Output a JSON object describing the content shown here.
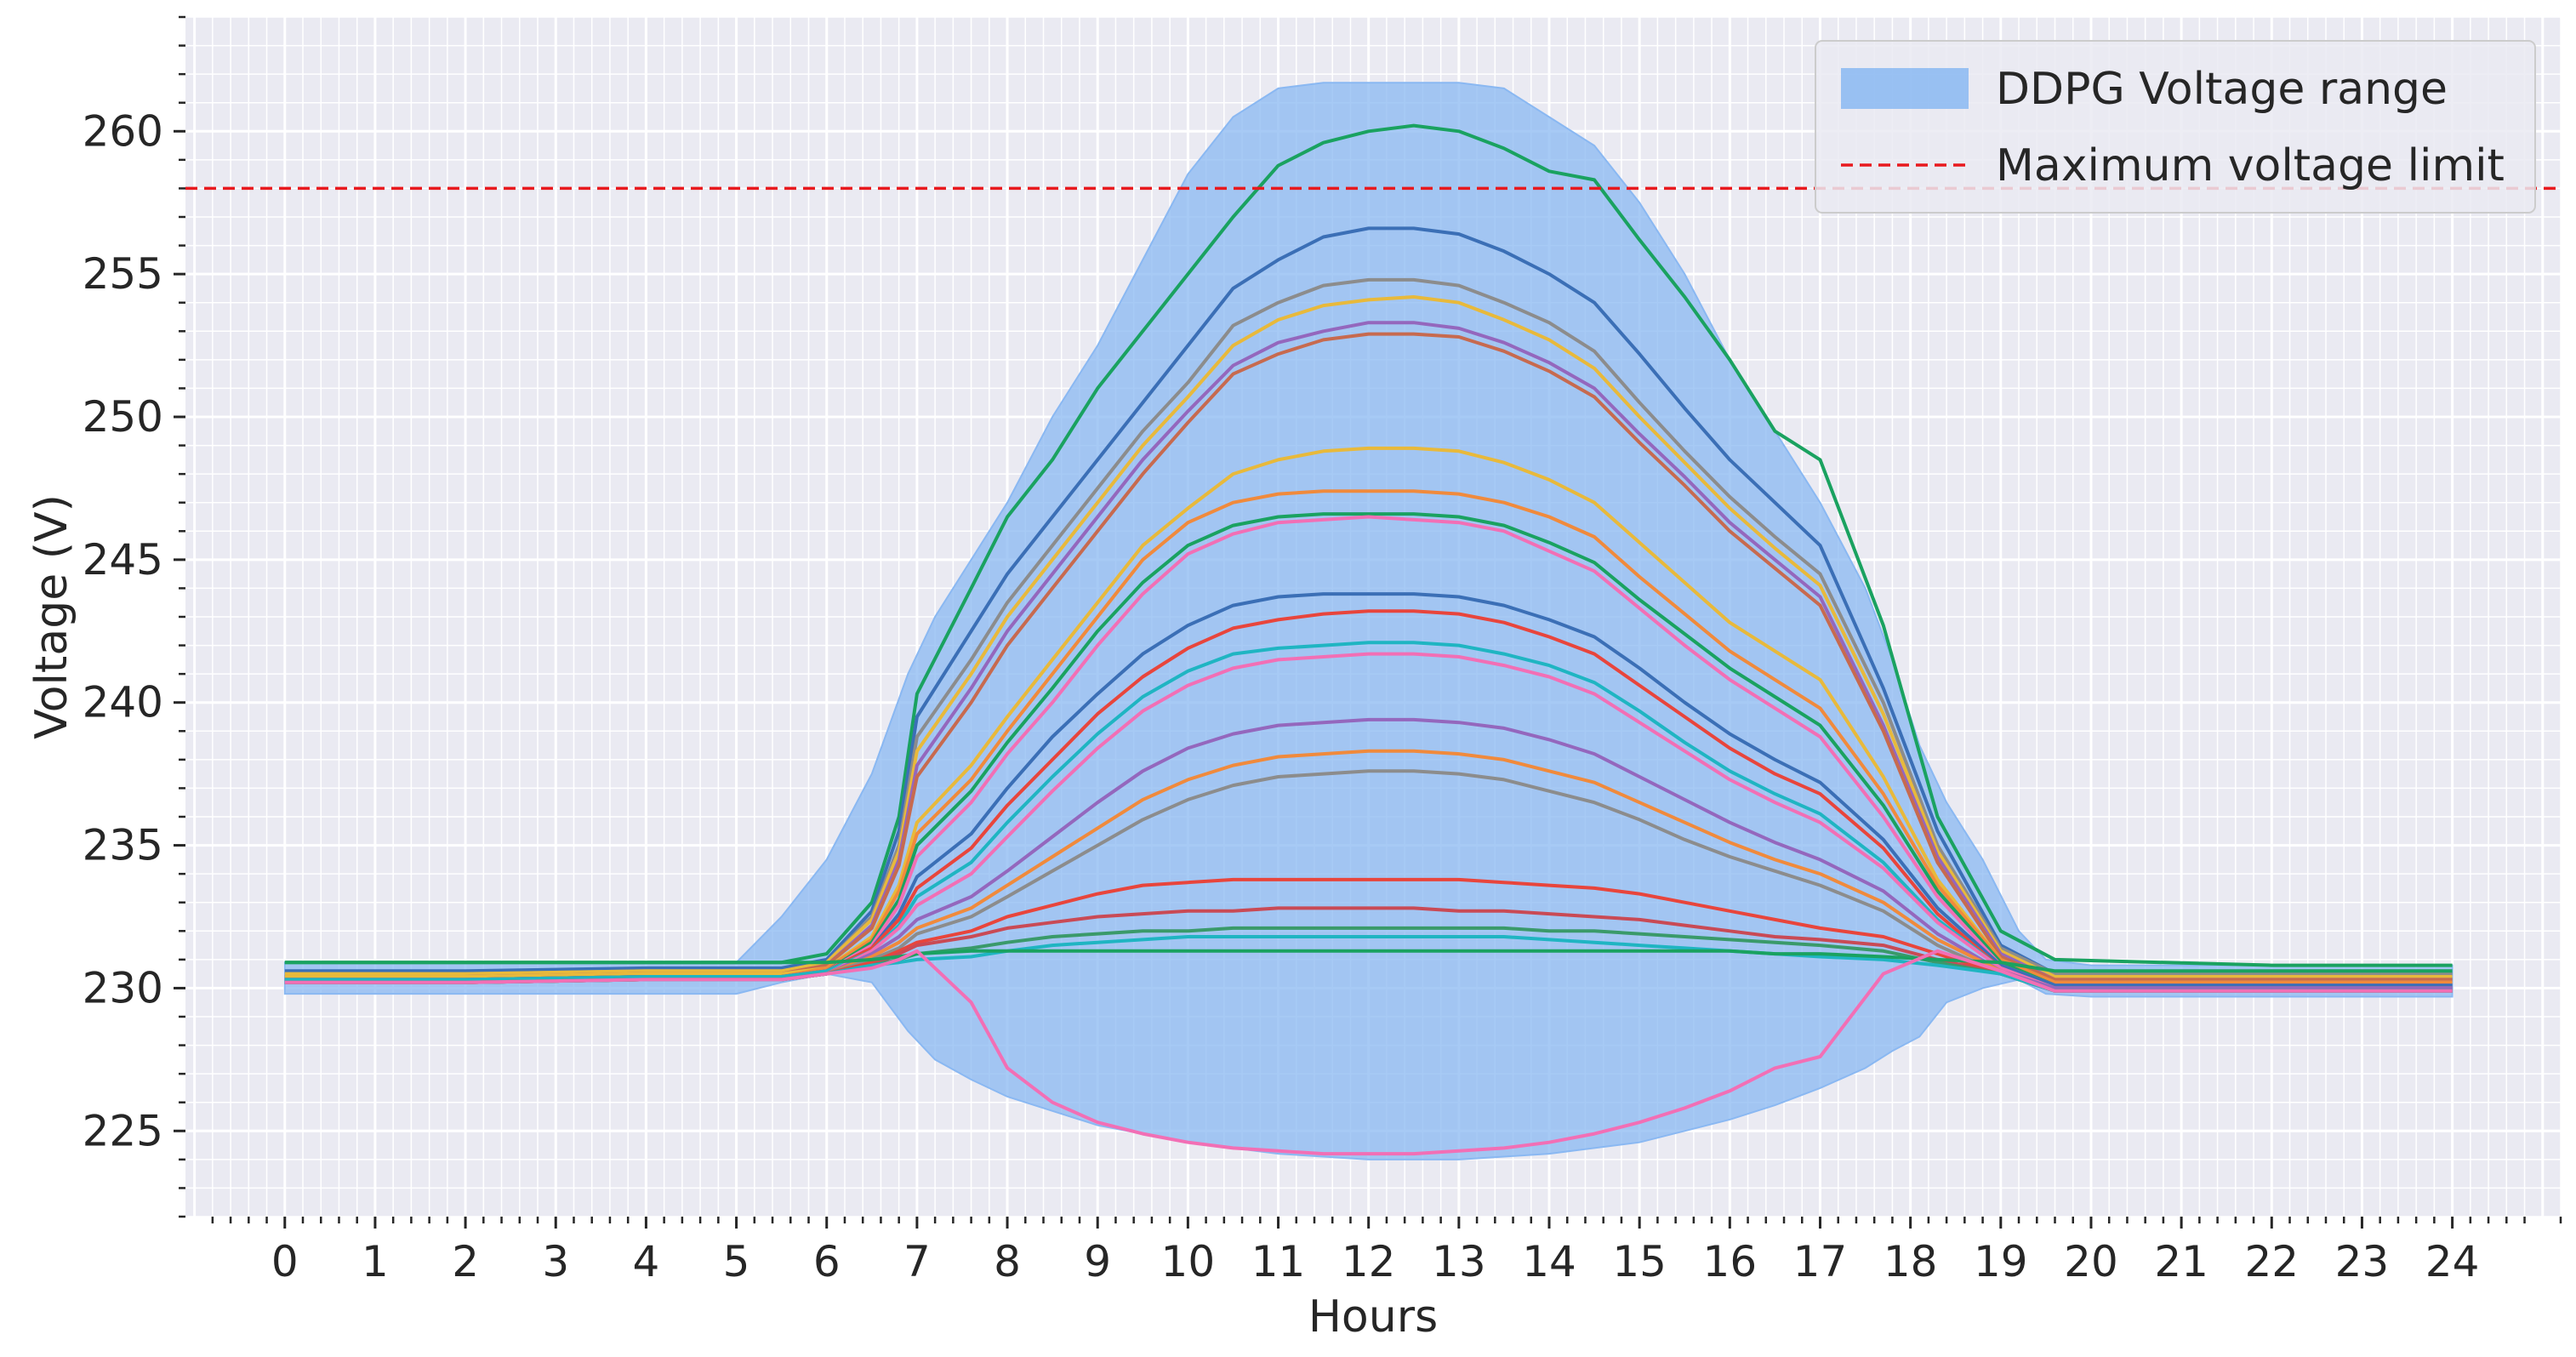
{
  "chart_data": {
    "type": "area",
    "title": "",
    "xlabel": "Hours",
    "ylabel": "Voltage (V)",
    "xlim": [
      -1.1,
      25.2
    ],
    "ylim": [
      222,
      264
    ],
    "x_ticks": [
      "0",
      "1",
      "2",
      "3",
      "4",
      "5",
      "6",
      "7",
      "8",
      "9",
      "10",
      "11",
      "12",
      "13",
      "14",
      "15",
      "16",
      "17",
      "18",
      "19",
      "20",
      "21",
      "22",
      "23",
      "24"
    ],
    "y_ticks": [
      "225",
      "230",
      "235",
      "240",
      "245",
      "250",
      "255",
      "260"
    ],
    "grid": true,
    "legend_position": "top-right",
    "legend": [
      {
        "label": "DDPG Voltage range",
        "kind": "band",
        "color": "#8ab8f2"
      },
      {
        "label": "Maximum voltage limit",
        "kind": "dashed-line",
        "color": "#e8191e"
      }
    ],
    "reference_line": {
      "name": "Maximum voltage limit",
      "y": 258,
      "color": "#e8191e"
    },
    "band": {
      "name": "DDPG Voltage range",
      "x": [
        0,
        0.5,
        1,
        2,
        3,
        4,
        5,
        5.5,
        6,
        6.5,
        6.9,
        7.2,
        7.6,
        8,
        8.5,
        9,
        9.5,
        10,
        10.5,
        11,
        11.5,
        12,
        12.5,
        13,
        13.5,
        14,
        14.5,
        15,
        15.5,
        16,
        16.5,
        17,
        17.5,
        17.8,
        18.1,
        18.4,
        18.8,
        19.2,
        19.5,
        20,
        21,
        22,
        23,
        24
      ],
      "upper": [
        230.9,
        230.9,
        230.9,
        230.9,
        230.9,
        230.9,
        230.9,
        232.5,
        234.5,
        237.5,
        241,
        243,
        245,
        247,
        250,
        252.5,
        255.5,
        258.5,
        260.5,
        261.5,
        261.7,
        261.7,
        261.7,
        261.7,
        261.5,
        260.5,
        259.5,
        257.5,
        255,
        252,
        249.5,
        247,
        244,
        241.5,
        238.5,
        236.5,
        234.5,
        232,
        231,
        230.8,
        230.8,
        230.8,
        230.8,
        230.8
      ],
      "lower": [
        229.8,
        229.8,
        229.8,
        229.8,
        229.8,
        229.8,
        229.8,
        230.2,
        230.5,
        230.2,
        228.5,
        227.5,
        226.8,
        226.2,
        225.7,
        225.2,
        224.9,
        224.6,
        224.4,
        224.2,
        224.1,
        224.0,
        224.0,
        224.0,
        224.1,
        224.2,
        224.4,
        224.6,
        225.0,
        225.4,
        225.9,
        226.5,
        227.2,
        227.8,
        228.3,
        229.5,
        230.0,
        230.3,
        229.8,
        229.7,
        229.7,
        229.7,
        229.7,
        229.7
      ]
    },
    "series": [
      {
        "color": "#1aa260",
        "values": [
          230.9,
          230.9,
          230.9,
          230.9,
          231.2,
          233,
          236,
          240.3,
          244,
          246.5,
          248.5,
          251,
          253,
          255,
          257,
          258.8,
          259.6,
          260.0,
          260.2,
          260.0,
          259.4,
          258.6,
          258.3,
          256.2,
          254.2,
          252.0,
          249.5,
          248.5,
          242.7,
          236.0,
          232.0,
          231.0,
          230.8,
          230.8
        ]
      },
      {
        "color": "#3b6fb6",
        "values": [
          230.6,
          230.6,
          230.7,
          230.7,
          231,
          232.7,
          235.5,
          239.5,
          242.5,
          244.5,
          246.5,
          248.5,
          250.5,
          252.5,
          254.5,
          255.5,
          256.3,
          256.6,
          256.6,
          256.4,
          255.8,
          255.0,
          254.0,
          252.2,
          250.3,
          248.5,
          247.0,
          245.5,
          240.5,
          235.5,
          231.5,
          230.5,
          230.5,
          230.5
        ]
      },
      {
        "color": "#8c8c8c",
        "values": [
          230.5,
          230.5,
          230.6,
          230.6,
          230.9,
          232.5,
          235,
          238.8,
          241.5,
          243.5,
          245.5,
          247.5,
          249.5,
          251.2,
          253.2,
          254.0,
          254.6,
          254.8,
          254.8,
          254.6,
          254.0,
          253.3,
          252.3,
          250.5,
          248.8,
          247.2,
          245.8,
          244.5,
          240.0,
          235.0,
          231.4,
          230.5,
          230.5,
          230.5
        ]
      },
      {
        "color": "#e8b93b",
        "values": [
          230.5,
          230.5,
          230.6,
          230.6,
          230.9,
          232.4,
          234.8,
          238.3,
          241,
          243,
          245,
          247,
          249,
          250.7,
          252.5,
          253.4,
          253.9,
          254.1,
          254.2,
          254.0,
          253.4,
          252.7,
          251.7,
          250.0,
          248.4,
          246.8,
          245.4,
          244.1,
          239.6,
          234.8,
          231.3,
          230.4,
          230.4,
          230.4
        ]
      },
      {
        "color": "#9467bd",
        "values": [
          230.4,
          230.4,
          230.5,
          230.5,
          230.8,
          232.2,
          234.5,
          237.8,
          240.5,
          242.5,
          244.5,
          246.5,
          248.5,
          250.2,
          251.8,
          252.6,
          253.0,
          253.3,
          253.3,
          253.1,
          252.6,
          251.9,
          251.0,
          249.4,
          247.9,
          246.3,
          245.0,
          243.7,
          239.2,
          234.6,
          231.2,
          230.3,
          230.3,
          230.3
        ]
      },
      {
        "color": "#c76a4f",
        "values": [
          230.4,
          230.4,
          230.5,
          230.5,
          230.8,
          232.1,
          234.3,
          237.4,
          240.0,
          242.0,
          244.0,
          246.0,
          248.0,
          249.8,
          251.5,
          252.2,
          252.7,
          252.9,
          252.9,
          252.8,
          252.3,
          251.6,
          250.7,
          249.1,
          247.6,
          246.0,
          244.7,
          243.4,
          239.0,
          234.4,
          231.1,
          230.3,
          230.3,
          230.3
        ]
      },
      {
        "color": "#e8b93b",
        "values": [
          230.4,
          230.4,
          230.5,
          230.5,
          230.7,
          231.8,
          233.6,
          235.8,
          237.8,
          239.5,
          241.5,
          243.5,
          245.5,
          246.8,
          248.0,
          248.5,
          248.8,
          248.9,
          248.9,
          248.8,
          248.4,
          247.8,
          247.0,
          245.6,
          244.2,
          242.8,
          241.8,
          240.8,
          237.4,
          233.8,
          231.0,
          230.2,
          230.2,
          230.2
        ]
      },
      {
        "color": "#f08a3c",
        "values": [
          230.3,
          230.3,
          230.4,
          230.4,
          230.7,
          231.7,
          233.4,
          235.4,
          237.3,
          239.0,
          241.0,
          243.0,
          245.0,
          246.3,
          247.0,
          247.3,
          247.4,
          247.4,
          247.4,
          247.3,
          247.0,
          246.5,
          245.8,
          244.4,
          243.1,
          241.8,
          240.8,
          239.8,
          236.8,
          233.6,
          231.0,
          230.2,
          230.2,
          230.2
        ]
      },
      {
        "color": "#1aa260",
        "values": [
          230.3,
          230.3,
          230.4,
          230.4,
          230.6,
          231.6,
          233.1,
          235.0,
          236.9,
          238.6,
          240.5,
          242.5,
          244.2,
          245.5,
          246.2,
          246.5,
          246.6,
          246.6,
          246.6,
          246.5,
          246.2,
          245.6,
          244.9,
          243.6,
          242.4,
          241.2,
          240.2,
          239.2,
          236.4,
          233.4,
          230.9,
          230.1,
          230.1,
          230.1
        ]
      },
      {
        "color": "#f26fb5",
        "values": [
          230.3,
          230.3,
          230.4,
          230.4,
          230.6,
          231.5,
          232.9,
          234.6,
          236.5,
          238.2,
          240.0,
          242.0,
          243.8,
          245.2,
          245.9,
          246.3,
          246.4,
          246.5,
          246.4,
          246.3,
          246.0,
          245.3,
          244.6,
          243.3,
          242.0,
          240.8,
          239.8,
          238.8,
          236.0,
          233.2,
          230.8,
          230.1,
          230.1,
          230.1
        ]
      },
      {
        "color": "#3b6fb6",
        "values": [
          230.3,
          230.3,
          230.4,
          230.4,
          230.6,
          231.4,
          232.6,
          233.9,
          235.4,
          237.0,
          238.8,
          240.3,
          241.7,
          242.7,
          243.4,
          243.7,
          243.8,
          243.8,
          243.8,
          243.7,
          243.4,
          242.9,
          242.3,
          241.2,
          240.0,
          238.9,
          238.0,
          237.2,
          235.2,
          232.8,
          230.8,
          230.1,
          230.1,
          230.1
        ]
      },
      {
        "color": "#e8453c",
        "values": [
          230.3,
          230.3,
          230.4,
          230.4,
          230.6,
          231.4,
          232.4,
          233.5,
          234.9,
          236.4,
          238.0,
          239.6,
          240.9,
          241.9,
          242.6,
          242.9,
          243.1,
          243.2,
          243.2,
          243.1,
          242.8,
          242.3,
          241.7,
          240.6,
          239.5,
          238.4,
          237.5,
          236.8,
          234.9,
          232.6,
          230.7,
          230.0,
          230.0,
          230.0
        ]
      },
      {
        "color": "#1fb5c2",
        "values": [
          230.3,
          230.3,
          230.4,
          230.4,
          230.6,
          231.3,
          232.2,
          233.2,
          234.4,
          235.8,
          237.4,
          238.9,
          240.2,
          241.1,
          241.7,
          241.9,
          242.0,
          242.1,
          242.1,
          242.0,
          241.7,
          241.3,
          240.7,
          239.7,
          238.6,
          237.6,
          236.8,
          236.1,
          234.4,
          232.4,
          230.7,
          230.0,
          230.0,
          230.0
        ]
      },
      {
        "color": "#f26fb5",
        "values": [
          230.2,
          230.2,
          230.3,
          230.3,
          230.5,
          231.3,
          232.1,
          232.9,
          234.0,
          235.3,
          236.9,
          238.4,
          239.7,
          240.6,
          241.2,
          241.5,
          241.6,
          241.7,
          241.7,
          241.6,
          241.3,
          240.9,
          240.3,
          239.3,
          238.3,
          237.3,
          236.5,
          235.8,
          234.2,
          232.3,
          230.7,
          230.0,
          230.0,
          230.0
        ]
      },
      {
        "color": "#9467bd",
        "values": [
          230.2,
          230.2,
          230.3,
          230.3,
          230.5,
          231.2,
          231.8,
          232.4,
          233.2,
          234.1,
          235.3,
          236.5,
          237.6,
          238.4,
          238.9,
          239.2,
          239.3,
          239.4,
          239.4,
          239.3,
          239.1,
          238.7,
          238.2,
          237.4,
          236.6,
          235.8,
          235.1,
          234.5,
          233.4,
          231.9,
          230.6,
          230.0,
          230.0,
          230.0
        ]
      },
      {
        "color": "#f08a3c",
        "values": [
          230.2,
          230.2,
          230.3,
          230.3,
          230.5,
          231.1,
          231.6,
          232.1,
          232.8,
          233.6,
          234.6,
          235.6,
          236.6,
          237.3,
          237.8,
          238.1,
          238.2,
          238.3,
          238.3,
          238.2,
          238.0,
          237.6,
          237.2,
          236.5,
          235.8,
          235.1,
          234.5,
          234.0,
          233.0,
          231.7,
          230.6,
          229.9,
          229.9,
          229.9
        ]
      },
      {
        "color": "#8c8c8c",
        "values": [
          230.2,
          230.2,
          230.3,
          230.3,
          230.5,
          231.0,
          231.4,
          231.9,
          232.5,
          233.2,
          234.1,
          235.0,
          235.9,
          236.6,
          237.1,
          237.4,
          237.5,
          237.6,
          237.6,
          237.5,
          237.3,
          236.9,
          236.5,
          235.9,
          235.2,
          234.6,
          234.1,
          233.6,
          232.7,
          231.5,
          230.5,
          229.9,
          229.9,
          229.9
        ]
      },
      {
        "color": "#e8453c",
        "values": [
          230.2,
          230.2,
          230.3,
          230.3,
          230.5,
          230.9,
          231.3,
          231.6,
          232.0,
          232.5,
          232.9,
          233.3,
          233.6,
          233.7,
          233.8,
          233.8,
          233.8,
          233.8,
          233.8,
          233.8,
          233.7,
          233.6,
          233.5,
          233.3,
          233.0,
          232.7,
          232.4,
          232.1,
          231.8,
          231.2,
          230.5,
          229.9,
          229.9,
          229.9
        ]
      },
      {
        "color": "#c94a55",
        "values": [
          230.2,
          230.2,
          230.3,
          230.3,
          230.5,
          230.8,
          231.2,
          231.5,
          231.8,
          232.1,
          232.3,
          232.5,
          232.6,
          232.7,
          232.7,
          232.8,
          232.8,
          232.8,
          232.8,
          232.7,
          232.7,
          232.6,
          232.5,
          232.4,
          232.2,
          232.0,
          231.8,
          231.7,
          231.5,
          231.0,
          230.5,
          229.9,
          229.9,
          229.9
        ]
      },
      {
        "color": "#3a9a6a",
        "values": [
          230.2,
          230.2,
          230.3,
          230.3,
          230.5,
          230.8,
          231.0,
          231.2,
          231.4,
          231.6,
          231.8,
          231.9,
          232.0,
          232.0,
          232.1,
          232.1,
          232.1,
          232.1,
          232.1,
          232.1,
          232.1,
          232.0,
          232.0,
          231.9,
          231.8,
          231.7,
          231.6,
          231.5,
          231.3,
          230.9,
          230.5,
          229.9,
          229.9,
          229.9
        ]
      },
      {
        "color": "#1fb5c2",
        "values": [
          230.2,
          230.2,
          230.3,
          230.3,
          230.5,
          230.8,
          230.9,
          231.0,
          231.1,
          231.3,
          231.5,
          231.6,
          231.7,
          231.8,
          231.8,
          231.8,
          231.8,
          231.8,
          231.8,
          231.8,
          231.8,
          231.7,
          231.6,
          231.5,
          231.4,
          231.3,
          231.2,
          231.1,
          231.0,
          230.8,
          230.5,
          229.9,
          229.9,
          229.9
        ]
      },
      {
        "color": "#1aa260",
        "values": [
          230.9,
          230.9,
          230.9,
          230.9,
          230.9,
          231.0,
          231.1,
          231.2,
          231.3,
          231.3,
          231.3,
          231.3,
          231.3,
          231.3,
          231.3,
          231.3,
          231.3,
          231.3,
          231.3,
          231.3,
          231.3,
          231.3,
          231.3,
          231.3,
          231.3,
          231.3,
          231.2,
          231.2,
          231.1,
          231.0,
          230.9,
          230.6,
          230.6,
          230.6
        ]
      },
      {
        "color": "#f26fb5",
        "values": [
          230.2,
          230.2,
          230.3,
          230.3,
          230.5,
          230.7,
          231.0,
          231.3,
          229.5,
          227.2,
          226.0,
          225.3,
          224.9,
          224.6,
          224.4,
          224.3,
          224.2,
          224.2,
          224.2,
          224.3,
          224.4,
          224.6,
          224.9,
          225.3,
          225.8,
          226.4,
          227.2,
          227.6,
          230.5,
          231.3,
          230.6,
          229.9,
          229.9,
          229.9
        ]
      }
    ],
    "series_x": [
      0,
      2,
      4,
      5.5,
      6.0,
      6.5,
      6.8,
      7.0,
      7.6,
      8.0,
      8.5,
      9.0,
      9.5,
      10.0,
      10.5,
      11.0,
      11.5,
      12.0,
      12.5,
      13.0,
      13.5,
      14.0,
      14.5,
      15.0,
      15.5,
      16.0,
      16.5,
      17.0,
      17.7,
      18.3,
      19.0,
      19.6,
      22.0,
      24.0
    ]
  }
}
